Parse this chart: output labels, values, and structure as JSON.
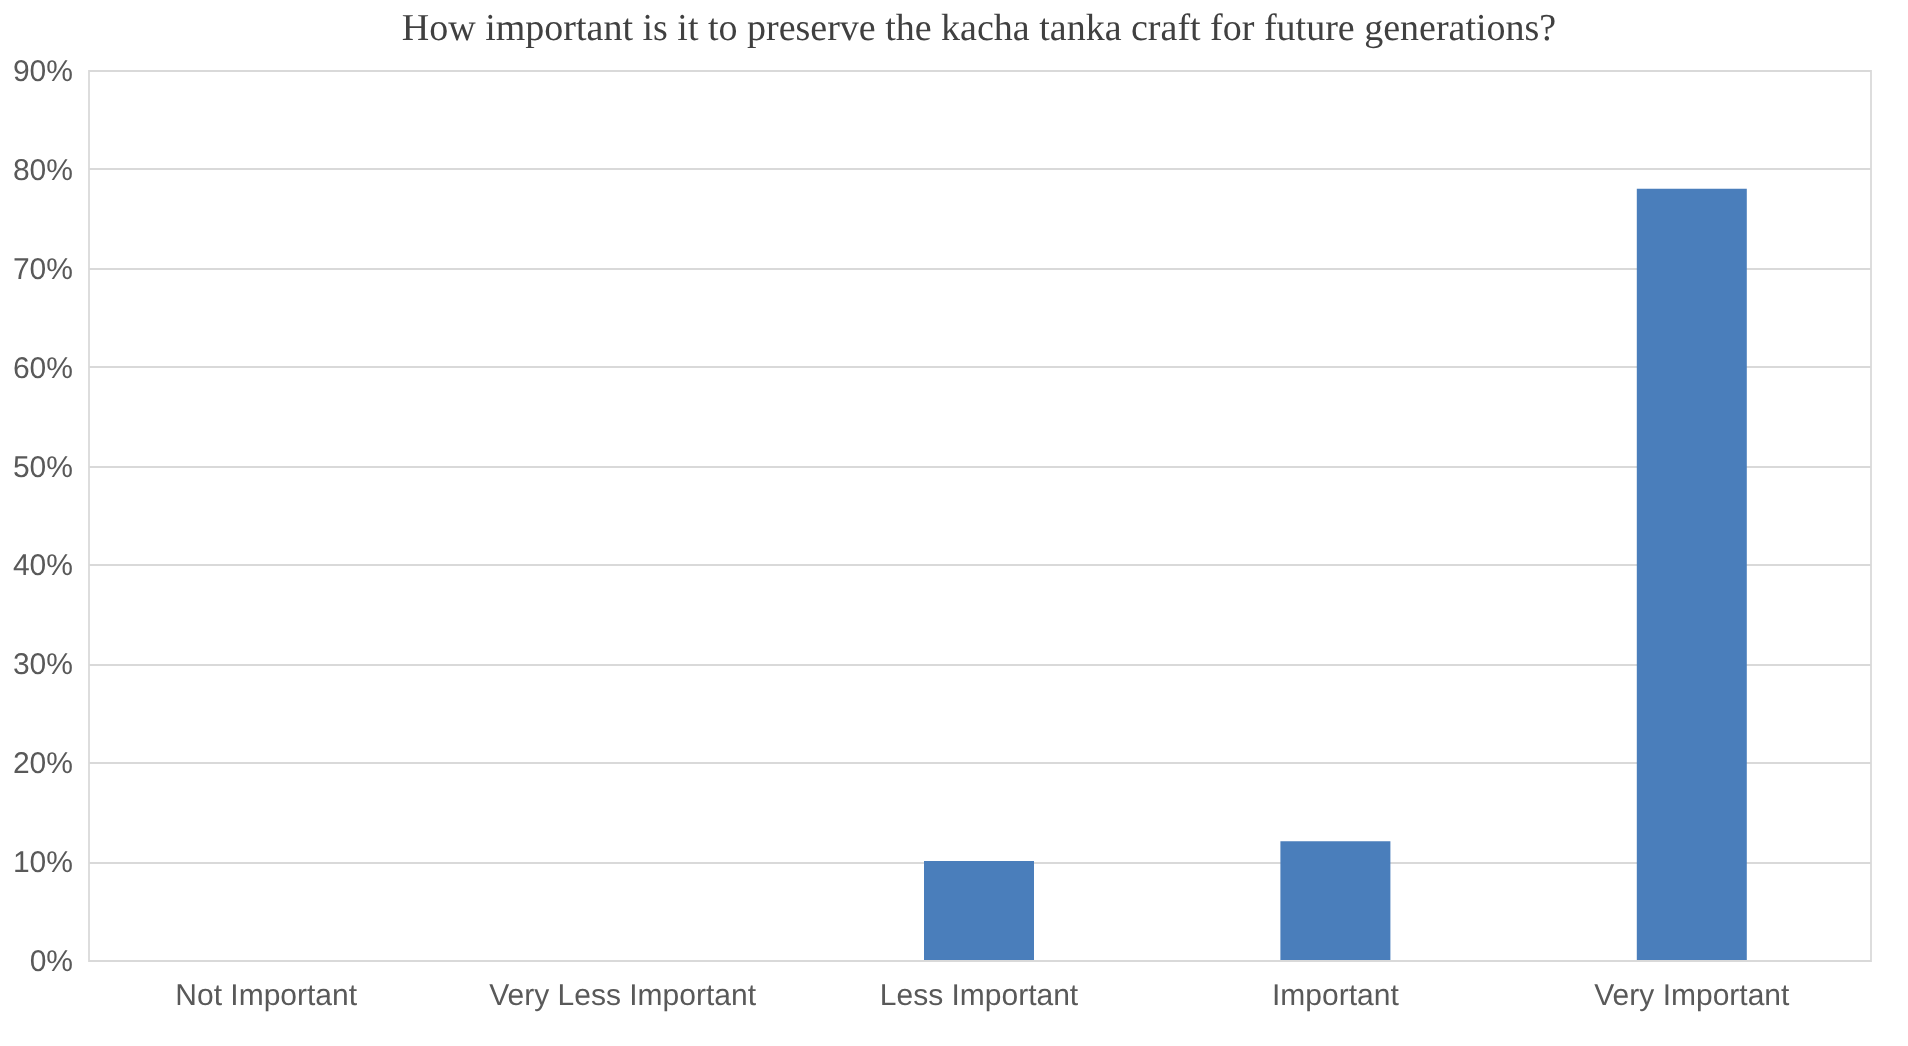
{
  "chart_data": {
    "type": "bar",
    "title": "How important is it to preserve the kacha tanka craft for future generations?",
    "categories": [
      "Not Important",
      "Very Less Important",
      "Less Important",
      "Important",
      "Very Important"
    ],
    "values": [
      0,
      0,
      10,
      12,
      78
    ],
    "color": "#4a7ebb",
    "ylim": [
      0,
      90
    ],
    "yticks": [
      {
        "value": 0,
        "label": "0%"
      },
      {
        "value": 10,
        "label": "10%"
      },
      {
        "value": 20,
        "label": "20%"
      },
      {
        "value": 30,
        "label": "30%"
      },
      {
        "value": 40,
        "label": "40%"
      },
      {
        "value": 50,
        "label": "50%"
      },
      {
        "value": 60,
        "label": "60%"
      },
      {
        "value": 70,
        "label": "70%"
      },
      {
        "value": 80,
        "label": "80%"
      },
      {
        "value": 90,
        "label": "90%"
      }
    ],
    "grid": "y"
  }
}
